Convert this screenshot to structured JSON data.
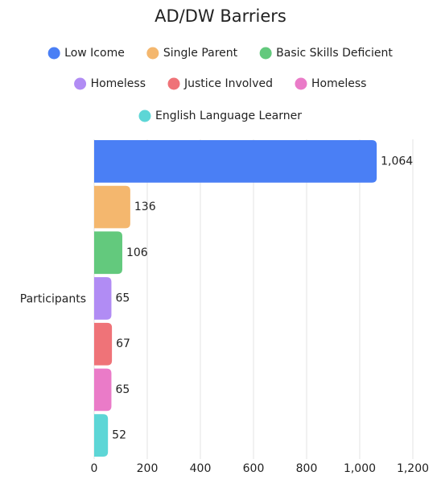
{
  "chart_data": {
    "type": "bar",
    "orientation": "horizontal",
    "title": "AD/DW Barriers",
    "categories": [
      "Participants"
    ],
    "series": [
      {
        "name": "Low Icome",
        "color": "#4a7ff5",
        "values": [
          1064
        ],
        "value_labels": [
          "1,064"
        ]
      },
      {
        "name": "Single Parent",
        "color": "#f4b76e",
        "values": [
          136
        ]
      },
      {
        "name": "Basic Skills Deficient",
        "color": "#63c97d",
        "values": [
          106
        ]
      },
      {
        "name": "Homeless",
        "color": "#b18cf4",
        "values": [
          65
        ]
      },
      {
        "name": "Justice Involved",
        "color": "#ef7378",
        "values": [
          67
        ]
      },
      {
        "name": "Homeless",
        "color": "#ea7bc8",
        "values": [
          65
        ]
      },
      {
        "name": "English Language Learner",
        "color": "#5dd6d6",
        "values": [
          52
        ]
      }
    ],
    "xlim": [
      0,
      1200
    ],
    "xticks": [
      0,
      200,
      400,
      600,
      800,
      {
        "value": 1000,
        "label": "1,000"
      },
      {
        "value": 1200,
        "label": "1,200"
      }
    ],
    "grid": true,
    "legend": "top"
  }
}
